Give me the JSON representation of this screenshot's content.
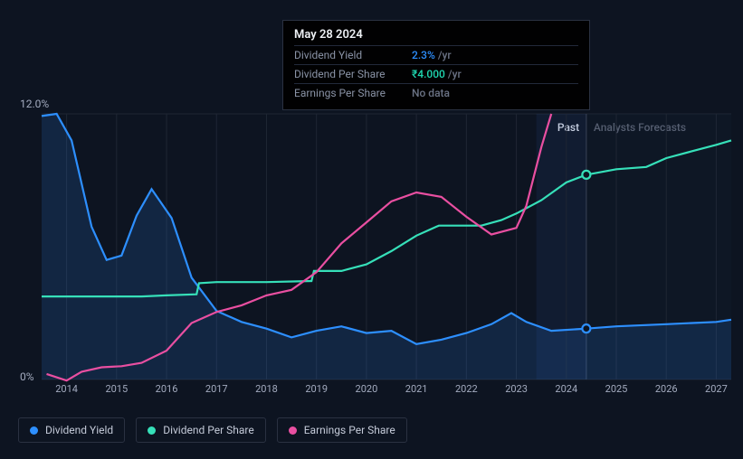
{
  "tooltip": {
    "date": "May 28 2024",
    "rows": [
      {
        "label": "Dividend Yield",
        "value": "2.3%",
        "unit": "/yr",
        "color": "blue"
      },
      {
        "label": "Dividend Per Share",
        "value": "₹4.000",
        "unit": "/yr",
        "color": "teal"
      },
      {
        "label": "Earnings Per Share",
        "value": "No data",
        "unit": "",
        "color": "gray"
      }
    ]
  },
  "chart": {
    "type": "line",
    "background": "#0d1421",
    "grid_color": "#1f2634",
    "x_years": [
      2014,
      2015,
      2016,
      2017,
      2018,
      2019,
      2020,
      2021,
      2022,
      2023,
      2024,
      2025,
      2026,
      2027
    ],
    "x_range": [
      2013.5,
      2027.3
    ],
    "y_range_pct": [
      0,
      12.0
    ],
    "y_ticks": [
      {
        "value": 0,
        "label": "0%"
      },
      {
        "value": 12.0,
        "label": "12.0%"
      }
    ],
    "regions": {
      "past_label": "Past",
      "forecast_label": "Analysts Forecasts",
      "split_year": 2024.4,
      "highlight_start": 2023.4,
      "highlight_end": 2024.4
    },
    "series": [
      {
        "name": "Dividend Yield",
        "color": "#2d8fff",
        "line_width": 2.2,
        "has_area": true,
        "points": [
          [
            2013.5,
            11.9
          ],
          [
            2013.8,
            12.0
          ],
          [
            2014.1,
            10.8
          ],
          [
            2014.5,
            6.9
          ],
          [
            2014.8,
            5.4
          ],
          [
            2015.1,
            5.6
          ],
          [
            2015.4,
            7.4
          ],
          [
            2015.7,
            8.6
          ],
          [
            2016.1,
            7.3
          ],
          [
            2016.5,
            4.6
          ],
          [
            2017.0,
            3.1
          ],
          [
            2017.5,
            2.6
          ],
          [
            2018.0,
            2.3
          ],
          [
            2018.5,
            1.9
          ],
          [
            2019.0,
            2.2
          ],
          [
            2019.5,
            2.4
          ],
          [
            2020.0,
            2.1
          ],
          [
            2020.5,
            2.2
          ],
          [
            2021.0,
            1.6
          ],
          [
            2021.5,
            1.8
          ],
          [
            2022.0,
            2.1
          ],
          [
            2022.5,
            2.5
          ],
          [
            2022.9,
            3.0
          ],
          [
            2023.2,
            2.6
          ],
          [
            2023.7,
            2.2
          ],
          [
            2024.4,
            2.3
          ],
          [
            2025.0,
            2.4
          ],
          [
            2026.0,
            2.5
          ],
          [
            2027.0,
            2.6
          ],
          [
            2027.3,
            2.7
          ]
        ]
      },
      {
        "name": "Dividend Per Share",
        "color": "#36e0b9",
        "line_width": 2.2,
        "has_area": false,
        "points": [
          [
            2013.5,
            3.75
          ],
          [
            2014.5,
            3.75
          ],
          [
            2015.0,
            3.75
          ],
          [
            2015.5,
            3.75
          ],
          [
            2016.0,
            3.8
          ],
          [
            2016.6,
            3.85
          ],
          [
            2016.65,
            4.35
          ],
          [
            2017.0,
            4.4
          ],
          [
            2018.0,
            4.4
          ],
          [
            2018.9,
            4.45
          ],
          [
            2018.95,
            4.9
          ],
          [
            2019.5,
            4.9
          ],
          [
            2020.0,
            5.2
          ],
          [
            2020.5,
            5.8
          ],
          [
            2021.0,
            6.5
          ],
          [
            2021.4,
            6.9
          ],
          [
            2021.45,
            6.95
          ],
          [
            2022.3,
            6.95
          ],
          [
            2022.7,
            7.2
          ],
          [
            2023.0,
            7.5
          ],
          [
            2023.5,
            8.1
          ],
          [
            2024.0,
            8.9
          ],
          [
            2024.4,
            9.25
          ],
          [
            2025.0,
            9.5
          ],
          [
            2025.6,
            9.6
          ],
          [
            2026.0,
            10.0
          ],
          [
            2026.5,
            10.3
          ],
          [
            2027.0,
            10.6
          ],
          [
            2027.3,
            10.8
          ]
        ]
      },
      {
        "name": "Earnings Per Share",
        "color": "#e94fa1",
        "line_width": 2.2,
        "has_area": false,
        "points": [
          [
            2013.6,
            0.25
          ],
          [
            2014.0,
            -0.05
          ],
          [
            2014.3,
            0.35
          ],
          [
            2014.7,
            0.55
          ],
          [
            2015.1,
            0.6
          ],
          [
            2015.5,
            0.75
          ],
          [
            2016.0,
            1.3
          ],
          [
            2016.5,
            2.55
          ],
          [
            2017.0,
            3.05
          ],
          [
            2017.5,
            3.35
          ],
          [
            2018.0,
            3.8
          ],
          [
            2018.5,
            4.05
          ],
          [
            2019.0,
            4.85
          ],
          [
            2019.5,
            6.15
          ],
          [
            2020.0,
            7.1
          ],
          [
            2020.5,
            8.05
          ],
          [
            2021.0,
            8.45
          ],
          [
            2021.5,
            8.25
          ],
          [
            2022.0,
            7.35
          ],
          [
            2022.5,
            6.55
          ],
          [
            2023.0,
            6.85
          ],
          [
            2023.2,
            7.85
          ],
          [
            2023.5,
            10.5
          ],
          [
            2023.7,
            12.0
          ]
        ]
      }
    ],
    "markers": [
      {
        "series": "Dividend Yield",
        "x": 2024.4,
        "y": 2.3,
        "color": "blue"
      },
      {
        "series": "Dividend Per Share",
        "x": 2024.4,
        "y": 9.25,
        "color": "teal"
      }
    ]
  },
  "legend": {
    "items": [
      {
        "label": "Dividend Yield",
        "color": "blue"
      },
      {
        "label": "Dividend Per Share",
        "color": "teal"
      },
      {
        "label": "Earnings Per Share",
        "color": "pink"
      }
    ]
  }
}
